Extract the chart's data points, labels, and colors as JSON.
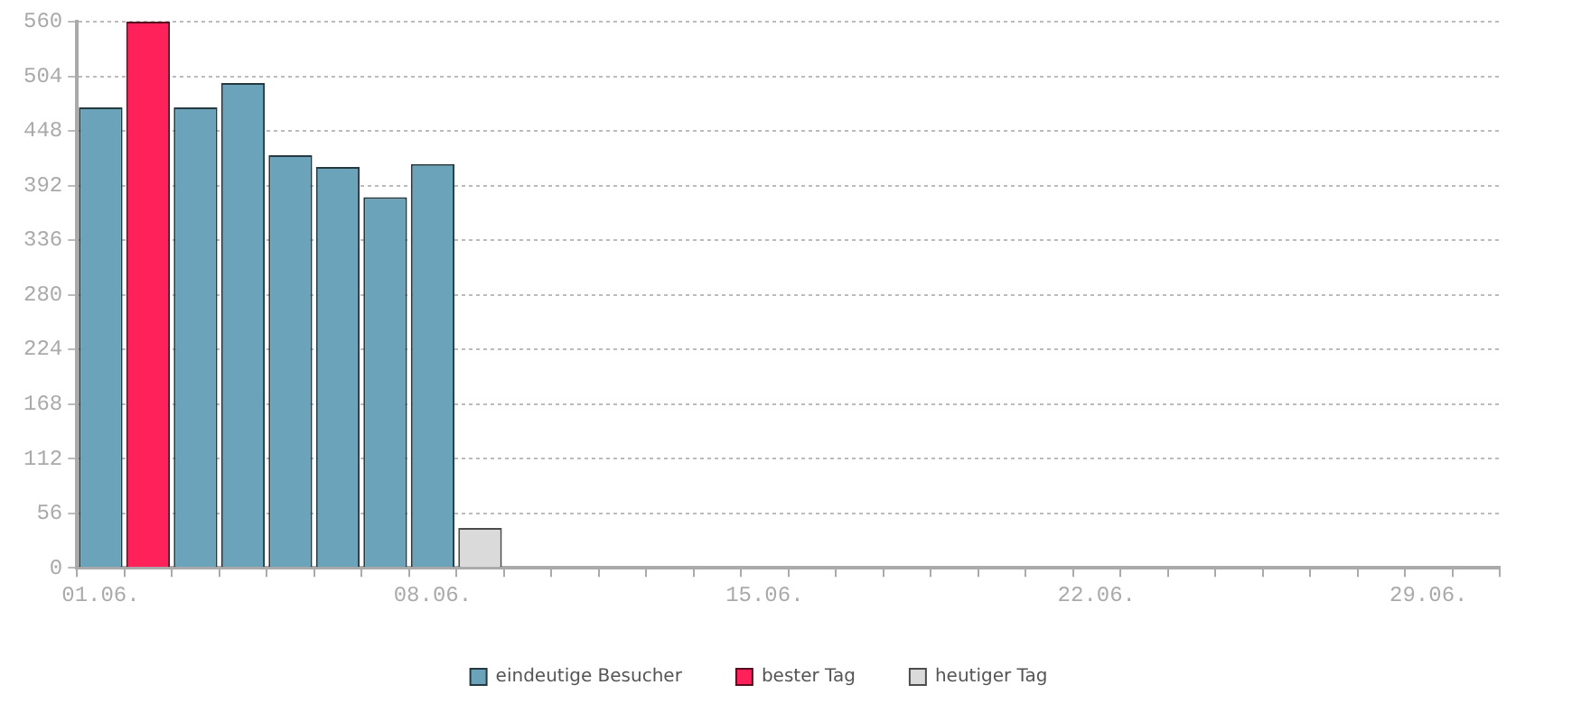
{
  "chart_data": {
    "type": "bar",
    "categories": [
      "01.06.",
      null,
      null,
      null,
      null,
      null,
      null,
      "08.06.",
      null,
      null,
      null,
      null,
      null,
      null,
      "15.06.",
      null,
      null,
      null,
      null,
      null,
      null,
      "22.06.",
      null,
      null,
      null,
      null,
      null,
      null,
      "29.06.",
      null
    ],
    "series": [
      {
        "name": "eindeutige Besucher",
        "color": "#6aa3ba",
        "values": [
          472,
          null,
          472,
          497,
          423,
          411,
          380,
          414,
          null,
          null,
          null,
          null,
          null,
          null,
          null,
          null,
          null,
          null,
          null,
          null,
          null,
          null,
          null,
          null,
          null,
          null,
          null,
          null,
          null,
          null
        ]
      },
      {
        "name": "bester Tag",
        "color": "#ff225a",
        "values": [
          null,
          560,
          null,
          null,
          null,
          null,
          null,
          null,
          null,
          null,
          null,
          null,
          null,
          null,
          null,
          null,
          null,
          null,
          null,
          null,
          null,
          null,
          null,
          null,
          null,
          null,
          null,
          null,
          null,
          null
        ]
      },
      {
        "name": "heutiger Tag",
        "color": "#dadada",
        "values": [
          null,
          null,
          null,
          null,
          null,
          null,
          null,
          null,
          41,
          null,
          null,
          null,
          null,
          null,
          null,
          null,
          null,
          null,
          null,
          null,
          null,
          null,
          null,
          null,
          null,
          null,
          null,
          null,
          null,
          null
        ]
      }
    ],
    "ylim": [
      0,
      560
    ],
    "yticks": [
      0,
      56,
      112,
      168,
      224,
      280,
      336,
      392,
      448,
      504,
      560
    ],
    "grid": "y",
    "legend": "bottom"
  }
}
